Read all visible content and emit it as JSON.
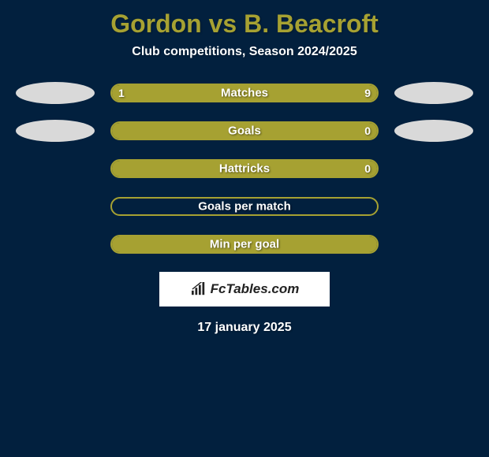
{
  "title": "Gordon vs B. Beacroft",
  "subtitle": "Club competitions, Season 2024/2025",
  "date": "17 january 2025",
  "logo_text": "FcTables.com",
  "colors": {
    "background": "#02203e",
    "accent": "#a6a132",
    "avatar_left": "#d9d9d9",
    "avatar_right": "#d9d9d9",
    "text": "#ffffff",
    "logo_bg": "#ffffff",
    "logo_text": "#222222"
  },
  "stats": [
    {
      "label": "Matches",
      "left_value": "1",
      "right_value": "9",
      "left_pct": 10,
      "right_pct": 90,
      "show_avatars": true,
      "fill_mode": "split"
    },
    {
      "label": "Goals",
      "left_value": "",
      "right_value": "0",
      "left_pct": 0,
      "right_pct": 0,
      "show_avatars": true,
      "fill_mode": "full"
    },
    {
      "label": "Hattricks",
      "left_value": "",
      "right_value": "0",
      "left_pct": 0,
      "right_pct": 0,
      "show_avatars": false,
      "fill_mode": "full"
    },
    {
      "label": "Goals per match",
      "left_value": "",
      "right_value": "",
      "left_pct": 0,
      "right_pct": 0,
      "show_avatars": false,
      "fill_mode": "none"
    },
    {
      "label": "Min per goal",
      "left_value": "",
      "right_value": "",
      "left_pct": 0,
      "right_pct": 0,
      "show_avatars": false,
      "fill_mode": "full"
    }
  ]
}
